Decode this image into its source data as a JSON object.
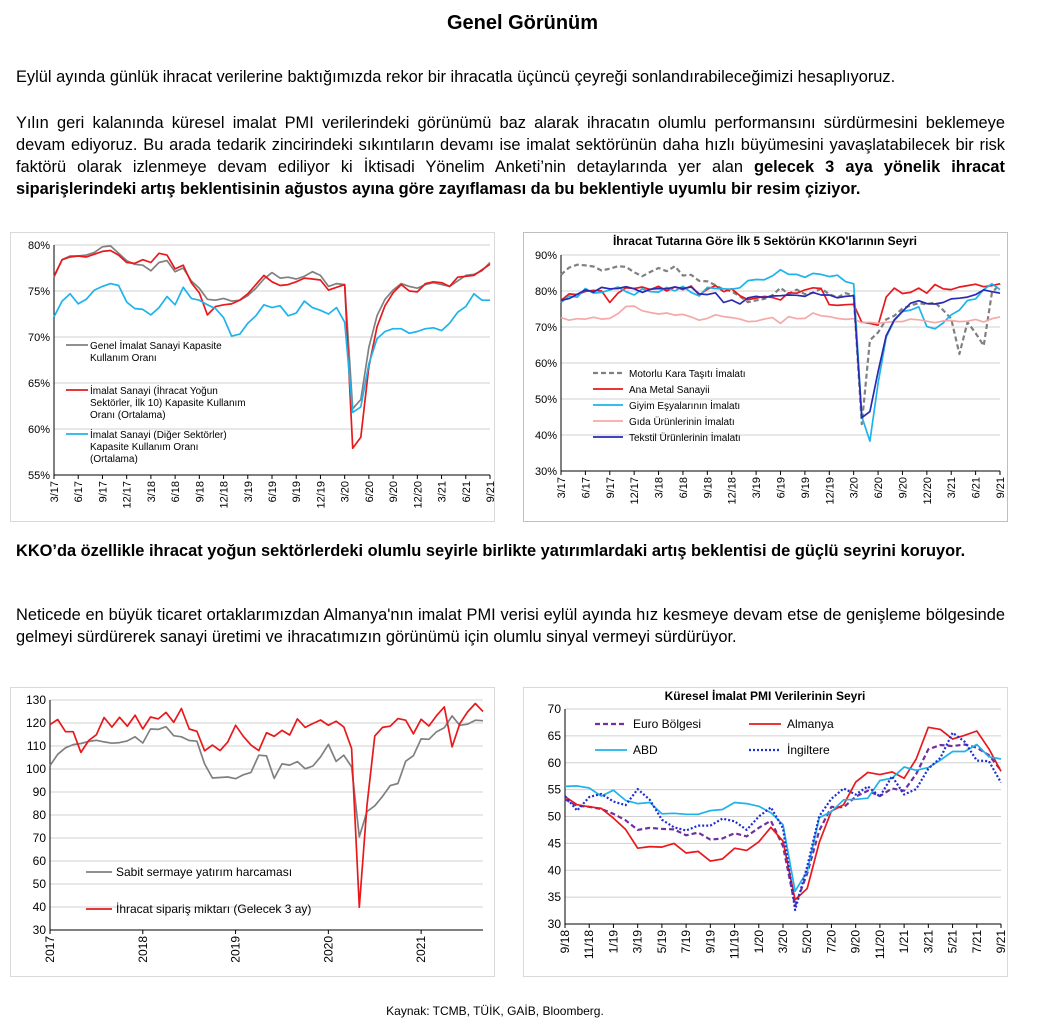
{
  "page": {
    "title": "Genel Görünüm",
    "p1": "Eylül ayında günlük ihracat verilerine baktığımızda rekor bir ihracatla üçüncü çeyreği sonlandırabileceğimizi hesaplıyoruz.",
    "p2_normal": "Yılın geri kalanında küresel imalat PMI verilerindeki görünümü baz alarak ihracatın olumlu performansını sürdürmesini beklemeye devam ediyoruz. Bu arada tedarik zincirindeki sıkıntıların devamı ise imalat sektörünün daha hızlı büyümesini yavaşlatabilecek bir risk faktörü olarak izlenmeye devam ediliyor ki İktisadi Yönelim Anketi’nin detaylarında yer alan ",
    "p2_bold": "gelecek 3 aya yönelik ihracat siparişlerindeki artış beklentisinin ağustos ayına göre zayıflaması da bu beklentiyle uyumlu bir resim çiziyor.",
    "p3": "KKO’da özellikle ihracat yoğun sektörlerdeki olumlu seyirle birlikte yatırımlardaki artış beklentisi de güçlü seyrini koruyor.",
    "p4": "Neticede en büyük ticaret ortaklarımızdan Almanya'nın imalat PMI verisi eylül ayında hız kesmeye devam etse de genişleme bölgesinde gelmeyi sürdürerek sanayi üretimi ve ihracatımızın görünümü için olumlu sinyal vermeyi sürdürüyor.",
    "source": "Kaynak: TCMB, TÜİK, GAİB, Bloomberg."
  },
  "chart_data": [
    {
      "id": "c1",
      "type": "line",
      "title": "",
      "ylim": [
        55,
        80
      ],
      "yticks": [
        55,
        60,
        65,
        70,
        75,
        80
      ],
      "ytick_labels": [
        "55%",
        "60%",
        "65%",
        "70%",
        "75%",
        "80%"
      ],
      "xticks": [
        "3/17",
        "6/17",
        "9/17",
        "12/17",
        "3/18",
        "6/18",
        "9/18",
        "12/18",
        "3/19",
        "6/19",
        "9/19",
        "12/19",
        "3/20",
        "6/20",
        "9/20",
        "12/20",
        "3/21",
        "6/21",
        "9/21"
      ],
      "grid": true,
      "legend_position": "left",
      "n_points": 55,
      "series": [
        {
          "name": "Genel İmalat Sanayi Kapasite Kullanım Oranı",
          "color": "#808080",
          "values": [
            76.5,
            78.4,
            78.8,
            78.8,
            78.9,
            79.2,
            79.8,
            79.9,
            79.1,
            78.3,
            77.9,
            77.8,
            77.2,
            78.1,
            78.3,
            77.1,
            77.5,
            76.1,
            75.3,
            74.1,
            74.0,
            74.2,
            73.9,
            74.0,
            74.5,
            75.3,
            76.3,
            77.0,
            76.4,
            76.5,
            76.3,
            76.6,
            77.1,
            76.7,
            75.5,
            75.8,
            75.7,
            62.2,
            63.2,
            68.9,
            72.3,
            74.1,
            75.1,
            75.8,
            75.5,
            75.3,
            75.7,
            75.9,
            75.7,
            75.5,
            76.1,
            76.7,
            76.8,
            77.2,
            78.1
          ]
        },
        {
          "name": "İmalat Sanayi (İhracat Yoğun Sektörler, İlk 10) Kapasite Kullanım Oranı (Ortalama)",
          "color": "#e8191d",
          "values": [
            76.6,
            78.4,
            78.7,
            78.8,
            78.7,
            79.0,
            79.3,
            79.4,
            78.9,
            78.1,
            78.0,
            78.4,
            78.1,
            79.1,
            78.9,
            77.4,
            77.8,
            75.9,
            74.8,
            72.4,
            73.3,
            73.5,
            73.6,
            74.0,
            74.7,
            75.7,
            76.7,
            76.0,
            75.6,
            75.7,
            76.0,
            76.4,
            76.3,
            76.2,
            75.1,
            75.4,
            75.7,
            57.9,
            59.1,
            66.8,
            71.1,
            73.4,
            74.8,
            75.7,
            75.0,
            74.9,
            75.8,
            76.0,
            75.9,
            75.5,
            76.5,
            76.6,
            76.7,
            77.3,
            77.9
          ]
        },
        {
          "name": "İmalat Sanayi (Diğer Sektörler) Kapasite Kullanım Oranı (Ortalama)",
          "color": "#1eb3ea",
          "values": [
            72.2,
            73.9,
            74.7,
            73.6,
            74.1,
            75.1,
            75.5,
            75.8,
            75.6,
            73.8,
            73.1,
            73.0,
            72.4,
            73.2,
            74.4,
            73.5,
            75.4,
            74.2,
            74.0,
            73.5,
            73.1,
            72.1,
            70.1,
            70.3,
            71.5,
            72.3,
            73.5,
            73.2,
            73.4,
            72.3,
            72.6,
            73.9,
            73.2,
            72.9,
            72.5,
            73.2,
            71.6,
            61.8,
            62.4,
            67.1,
            69.8,
            70.6,
            70.9,
            70.9,
            70.4,
            70.6,
            70.9,
            71.0,
            70.7,
            71.5,
            72.7,
            73.3,
            74.7,
            74.0,
            74.0
          ]
        }
      ]
    },
    {
      "id": "c2",
      "type": "line",
      "title": "İhracat Tutarına Göre İlk 5 Sektörün KKO'larının Seyri",
      "ylim": [
        30,
        90
      ],
      "yticks": [
        30,
        40,
        50,
        60,
        70,
        80,
        90
      ],
      "ytick_labels": [
        "30%",
        "40%",
        "50%",
        "60%",
        "70%",
        "80%",
        "90%"
      ],
      "xticks": [
        "3/17",
        "6/17",
        "9/17",
        "12/17",
        "3/18",
        "6/18",
        "9/18",
        "12/18",
        "3/19",
        "6/19",
        "9/19",
        "12/19",
        "3/20",
        "6/20",
        "9/20",
        "12/20",
        "3/21",
        "6/21",
        "9/21"
      ],
      "grid": true,
      "legend_position": "center-left",
      "n_points": 55,
      "series": [
        {
          "name": "Motorlu Kara Taşıtı İmalatı",
          "color": "#808080",
          "dash": true,
          "values": [
            84.5,
            86.5,
            87.3,
            87.1,
            86.8,
            85.7,
            86.2,
            86.9,
            86.7,
            85.2,
            84.1,
            85.3,
            86.4,
            85.5,
            86.9,
            84.3,
            84.5,
            82.8,
            82.7,
            81.6,
            80.4,
            79.9,
            78.5,
            76.9,
            77.4,
            77.8,
            78.8,
            80.9,
            79.2,
            80.4,
            79.1,
            79.5,
            80.7,
            79.1,
            78.2,
            79.4,
            78.8,
            43.0,
            66.3,
            68.5,
            72.1,
            73.1,
            75.1,
            76.0,
            76.6,
            76.3,
            76.8,
            74.7,
            72.3,
            62.5,
            71.3,
            68.3,
            64.8,
            79.5,
            82.0
          ]
        },
        {
          "name": "Ana Metal Sanayii",
          "color": "#e8191d",
          "values": [
            77.4,
            79.2,
            79.0,
            79.9,
            80.2,
            80.0,
            76.8,
            79.4,
            80.9,
            80.7,
            81.1,
            80.4,
            81.3,
            80.0,
            81.1,
            80.4,
            81.4,
            78.9,
            80.5,
            81.5,
            79.8,
            80.6,
            78.7,
            77.6,
            78.0,
            78.5,
            78.2,
            77.5,
            79.5,
            79.4,
            80.3,
            80.9,
            80.7,
            76.2,
            76.0,
            76.2,
            76.3,
            71.3,
            71.0,
            70.5,
            78.3,
            80.8,
            79.3,
            79.6,
            80.8,
            79.4,
            81.8,
            80.6,
            80.4,
            81.1,
            81.5,
            81.9,
            81.2,
            81.5,
            82.0
          ]
        },
        {
          "name": "Giyim Eşyalarının İmalatı",
          "color": "#1eb3ea",
          "values": [
            76.8,
            78.6,
            78.3,
            80.7,
            79.4,
            79.6,
            80.3,
            81.1,
            79.8,
            78.9,
            80.6,
            79.8,
            79.7,
            81.0,
            80.0,
            81.3,
            79.6,
            78.6,
            81.0,
            80.7,
            80.6,
            80.5,
            80.9,
            82.9,
            83.2,
            83.1,
            84.2,
            85.9,
            84.6,
            84.6,
            83.8,
            84.9,
            84.6,
            84.0,
            84.4,
            82.6,
            82.0,
            45.1,
            38.3,
            54.4,
            67.2,
            71.8,
            74.3,
            74.7,
            75.6,
            70.1,
            69.5,
            71.1,
            73.4,
            74.7,
            77.4,
            77.8,
            80.4,
            82.0,
            80.4
          ]
        },
        {
          "name": "Gıda Ürünlerinin İmalatı",
          "color": "#f4a9a8",
          "values": [
            72.6,
            71.9,
            72.3,
            72.2,
            72.7,
            72.2,
            72.4,
            73.7,
            75.7,
            75.8,
            74.5,
            74.0,
            73.6,
            73.9,
            73.3,
            73.5,
            72.8,
            71.9,
            72.4,
            73.4,
            72.9,
            72.6,
            72.2,
            71.5,
            71.6,
            72.2,
            72.6,
            71.0,
            72.9,
            72.3,
            72.4,
            73.9,
            73.1,
            72.9,
            72.4,
            72.1,
            72.3,
            71.2,
            71.3,
            71.0,
            71.3,
            71.5,
            71.5,
            72.2,
            72.0,
            71.6,
            71.2,
            71.7,
            71.8,
            71.5,
            71.6,
            72.1,
            71.4,
            72.3,
            72.8
          ]
        },
        {
          "name": "Tekstil Ürünlerinin İmalatı",
          "color": "#2a2ab0",
          "values": [
            77.4,
            77.9,
            79.1,
            80.3,
            79.7,
            81.0,
            80.6,
            80.7,
            81.2,
            80.6,
            79.6,
            80.5,
            80.7,
            80.6,
            81.1,
            80.7,
            81.1,
            79.2,
            79.0,
            79.5,
            76.8,
            77.5,
            76.4,
            78.1,
            78.5,
            78.2,
            78.6,
            78.7,
            78.9,
            78.8,
            78.5,
            79.6,
            78.9,
            78.9,
            78.1,
            78.5,
            78.7,
            44.8,
            46.5,
            57.6,
            67.6,
            72.0,
            74.3,
            76.6,
            77.3,
            76.5,
            76.4,
            76.8,
            77.8,
            78.0,
            78.3,
            79.0,
            80.3,
            79.8,
            79.4
          ]
        }
      ]
    },
    {
      "id": "c3",
      "type": "line",
      "title": "",
      "ylim": [
        30,
        130
      ],
      "yticks": [
        30,
        40,
        50,
        60,
        70,
        80,
        90,
        100,
        110,
        120,
        130
      ],
      "ytick_labels": [
        "30",
        "40",
        "50",
        "60",
        "70",
        "80",
        "90",
        "100",
        "110",
        "120",
        "130"
      ],
      "xticks": [
        "2017",
        "2018",
        "2019",
        "2020",
        "2021"
      ],
      "grid": true,
      "legend_position": "bottom-left",
      "n_points": 57,
      "series": [
        {
          "name": "Sabit sermaye yatırım harcaması",
          "color": "#808080",
          "values": [
            101.5,
            106.4,
            109.2,
            110.6,
            111.1,
            112.0,
            112.5,
            111.8,
            111.2,
            111.5,
            112.2,
            114.0,
            111.3,
            117.4,
            117.2,
            118.4,
            114.5,
            114.0,
            112.4,
            112.1,
            102.2,
            96.1,
            96.3,
            96.5,
            95.8,
            97.5,
            98.5,
            106.0,
            105.7,
            95.9,
            102.2,
            101.7,
            103.2,
            100.1,
            101.3,
            105.3,
            110.7,
            103.3,
            106.0,
            100.9,
            70.5,
            81.5,
            84.0,
            88.1,
            92.8,
            93.7,
            103.4,
            105.8,
            113.1,
            112.9,
            116.2,
            117.9,
            123.1,
            119.0,
            119.5,
            121.2,
            121.0
          ]
        },
        {
          "name": "İhracat sipariş miktarı (Gelecek 3 ay)",
          "color": "#e8191d",
          "values": [
            119.3,
            121.5,
            116.2,
            116.2,
            107.2,
            112.4,
            114.9,
            122.4,
            118.2,
            122.5,
            118.6,
            123.4,
            117.4,
            122.6,
            121.8,
            124.6,
            120.3,
            126.3,
            117.4,
            116.4,
            107.9,
            110.4,
            108.0,
            111.8,
            119.0,
            114.2,
            110.4,
            108.0,
            115.8,
            114.2,
            116.8,
            114.8,
            121.8,
            118.1,
            119.8,
            121.3,
            119.0,
            120.8,
            118.3,
            108.9,
            39.9,
            84.3,
            114.4,
            118.1,
            118.6,
            121.9,
            121.2,
            115.3,
            121.6,
            118.7,
            123.2,
            127.0,
            109.6,
            119.7,
            124.8,
            128.5,
            125.0
          ]
        }
      ]
    },
    {
      "id": "c4",
      "type": "line",
      "title": "Küresel İmalat PMI Verilerinin Seyri",
      "ylim": [
        30,
        70
      ],
      "yticks": [
        30,
        35,
        40,
        45,
        50,
        55,
        60,
        65,
        70
      ],
      "ytick_labels": [
        "30",
        "35",
        "40",
        "45",
        "50",
        "55",
        "60",
        "65",
        "70"
      ],
      "xticks": [
        "9/18",
        "11/18",
        "1/19",
        "3/19",
        "5/19",
        "7/19",
        "9/19",
        "11/19",
        "1/20",
        "3/20",
        "5/20",
        "7/20",
        "9/20",
        "11/20",
        "1/21",
        "3/21",
        "5/21",
        "7/21",
        "9/21"
      ],
      "grid": true,
      "legend_position": "top",
      "n_points": 37,
      "series": [
        {
          "name": "Euro Bölgesi",
          "color": "#7030a0",
          "dash": true,
          "values": [
            53.2,
            52.0,
            51.8,
            51.4,
            50.5,
            49.3,
            47.5,
            47.9,
            47.7,
            47.6,
            46.5,
            47.0,
            45.7,
            45.9,
            46.9,
            46.3,
            47.9,
            49.2,
            44.5,
            33.4,
            39.4,
            47.4,
            51.8,
            51.7,
            53.7,
            54.8,
            53.8,
            55.2,
            54.8,
            57.9,
            62.5,
            63.3,
            63.1,
            63.4,
            62.8,
            61.4,
            58.6
          ]
        },
        {
          "name": "Almanya",
          "color": "#e8191d",
          "values": [
            53.7,
            52.2,
            51.8,
            51.5,
            49.7,
            47.6,
            44.1,
            44.4,
            44.3,
            45.0,
            43.2,
            43.5,
            41.7,
            42.1,
            44.1,
            43.7,
            45.3,
            48.0,
            45.4,
            34.5,
            36.6,
            45.2,
            51.0,
            52.2,
            56.4,
            58.2,
            57.8,
            58.3,
            57.1,
            60.7,
            66.6,
            66.2,
            64.4,
            65.1,
            65.9,
            62.6,
            58.4
          ]
        },
        {
          "name": "ABD",
          "color": "#1eb3ea",
          "values": [
            55.6,
            55.7,
            55.3,
            53.8,
            54.9,
            53.0,
            52.4,
            52.6,
            50.5,
            50.6,
            50.4,
            50.4,
            51.1,
            51.3,
            52.6,
            52.4,
            51.9,
            50.7,
            48.5,
            36.1,
            39.8,
            49.8,
            50.9,
            53.1,
            53.2,
            53.4,
            56.7,
            57.1,
            59.2,
            58.6,
            59.1,
            60.5,
            62.1,
            62.1,
            63.4,
            61.1,
            60.7
          ]
        },
        {
          "name": "İngiltere",
          "color": "#1f2fd1",
          "dash": true,
          "values": [
            53.8,
            51.1,
            53.6,
            54.2,
            52.8,
            52.1,
            55.1,
            53.1,
            49.4,
            48.0,
            47.4,
            48.3,
            48.3,
            49.6,
            49.1,
            47.5,
            50.0,
            51.7,
            47.8,
            32.6,
            40.7,
            50.1,
            53.3,
            55.2,
            54.1,
            55.6,
            53.7,
            57.5,
            54.1,
            55.1,
            58.9,
            60.9,
            65.6,
            63.9,
            60.4,
            60.3,
            56.3
          ]
        }
      ]
    }
  ]
}
